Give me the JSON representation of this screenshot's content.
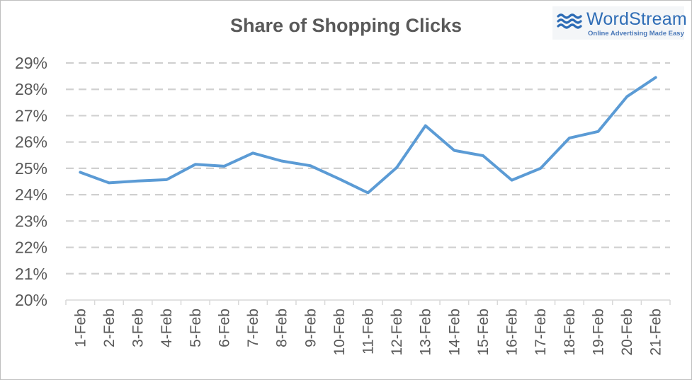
{
  "chart_data": {
    "type": "line",
    "title": "Share of Shopping Clicks",
    "xlabel": "",
    "ylabel": "",
    "categories": [
      "1-Feb",
      "2-Feb",
      "3-Feb",
      "4-Feb",
      "5-Feb",
      "6-Feb",
      "7-Feb",
      "8-Feb",
      "9-Feb",
      "10-Feb",
      "11-Feb",
      "12-Feb",
      "13-Feb",
      "14-Feb",
      "15-Feb",
      "16-Feb",
      "17-Feb",
      "18-Feb",
      "19-Feb",
      "20-Feb",
      "21-Feb"
    ],
    "series": [
      {
        "values": [
          24.85,
          24.45,
          24.52,
          24.57,
          25.15,
          25.08,
          25.58,
          25.28,
          25.1,
          24.6,
          24.07,
          25.03,
          26.62,
          25.68,
          25.48,
          24.55,
          25.0,
          26.15,
          26.4,
          27.72,
          28.45
        ],
        "color": "#5b9bd5"
      }
    ],
    "ylim": [
      20,
      29
    ],
    "yticks": [
      "20%",
      "21%",
      "22%",
      "23%",
      "24%",
      "25%",
      "26%",
      "27%",
      "28%",
      "29%"
    ],
    "grid": true,
    "legend": "none"
  },
  "logo": {
    "name": "WordStream",
    "tagline": "Online Advertising Made Easy",
    "icon": "waves-icon"
  }
}
